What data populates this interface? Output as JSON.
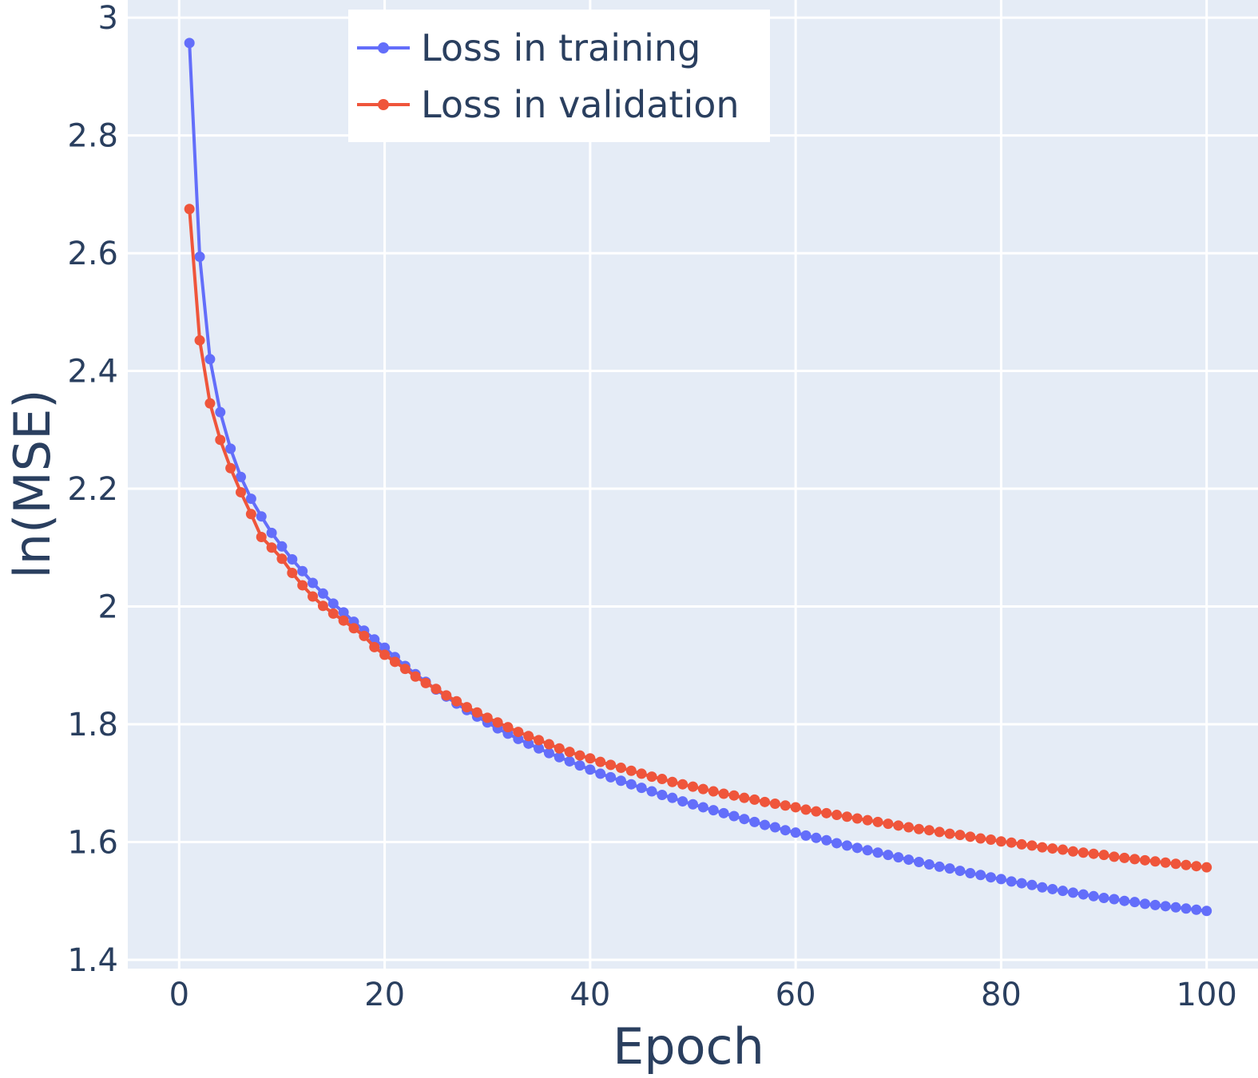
{
  "chart_data": {
    "type": "line",
    "title": "",
    "xlabel": "Epoch",
    "ylabel": "ln(MSE)",
    "xlim": [
      -5,
      105
    ],
    "ylim": [
      1.385,
      3.03
    ],
    "x_ticks": [
      0,
      20,
      40,
      60,
      80,
      100
    ],
    "x_tick_labels": [
      "0",
      "20",
      "40",
      "60",
      "80",
      "100"
    ],
    "y_ticks": [
      1.4,
      1.6,
      1.8,
      2.0,
      2.2,
      2.4,
      2.6,
      2.8,
      3.0
    ],
    "y_tick_labels": [
      "1.4",
      "1.6",
      "1.8",
      "2",
      "2.2",
      "2.4",
      "2.6",
      "2.8",
      "3"
    ],
    "grid": true,
    "legend_position": "top-left",
    "background_color": "#e5ecf6",
    "grid_color": "#ffffff",
    "text_color": "#2a3f5f",
    "x": [
      1,
      2,
      3,
      4,
      5,
      6,
      7,
      8,
      9,
      10,
      11,
      12,
      13,
      14,
      15,
      16,
      17,
      18,
      19,
      20,
      21,
      22,
      23,
      24,
      25,
      26,
      27,
      28,
      29,
      30,
      31,
      32,
      33,
      34,
      35,
      36,
      37,
      38,
      39,
      40,
      41,
      42,
      43,
      44,
      45,
      46,
      47,
      48,
      49,
      50,
      51,
      52,
      53,
      54,
      55,
      56,
      57,
      58,
      59,
      60,
      61,
      62,
      63,
      64,
      65,
      66,
      67,
      68,
      69,
      70,
      71,
      72,
      73,
      74,
      75,
      76,
      77,
      78,
      79,
      80,
      81,
      82,
      83,
      84,
      85,
      86,
      87,
      88,
      89,
      90,
      91,
      92,
      93,
      94,
      95,
      96,
      97,
      98,
      99,
      100
    ],
    "series": [
      {
        "name": "Loss in training",
        "color": "#636efa",
        "values": [
          2.957,
          2.594,
          2.42,
          2.33,
          2.268,
          2.22,
          2.183,
          2.153,
          2.125,
          2.102,
          2.08,
          2.06,
          2.04,
          2.022,
          2.005,
          1.99,
          1.974,
          1.959,
          1.944,
          1.93,
          1.914,
          1.899,
          1.885,
          1.872,
          1.859,
          1.847,
          1.835,
          1.824,
          1.813,
          1.803,
          1.793,
          1.784,
          1.775,
          1.767,
          1.759,
          1.751,
          1.744,
          1.737,
          1.73,
          1.723,
          1.716,
          1.71,
          1.704,
          1.698,
          1.692,
          1.686,
          1.68,
          1.675,
          1.669,
          1.664,
          1.659,
          1.654,
          1.649,
          1.644,
          1.639,
          1.634,
          1.629,
          1.625,
          1.62,
          1.616,
          1.611,
          1.607,
          1.603,
          1.598,
          1.594,
          1.59,
          1.586,
          1.582,
          1.578,
          1.574,
          1.57,
          1.566,
          1.562,
          1.558,
          1.555,
          1.551,
          1.547,
          1.544,
          1.54,
          1.537,
          1.533,
          1.53,
          1.527,
          1.523,
          1.52,
          1.517,
          1.514,
          1.511,
          1.508,
          1.505,
          1.503,
          1.5,
          1.498,
          1.495,
          1.493,
          1.491,
          1.489,
          1.487,
          1.485,
          1.483
        ]
      },
      {
        "name": "Loss in validation",
        "color": "#ef553b",
        "values": [
          2.675,
          2.452,
          2.345,
          2.283,
          2.235,
          2.194,
          2.157,
          2.118,
          2.1,
          2.081,
          2.057,
          2.036,
          2.017,
          2.001,
          1.988,
          1.976,
          1.963,
          1.95,
          1.931,
          1.918,
          1.906,
          1.894,
          1.881,
          1.87,
          1.86,
          1.849,
          1.839,
          1.829,
          1.82,
          1.811,
          1.803,
          1.795,
          1.787,
          1.78,
          1.773,
          1.766,
          1.759,
          1.753,
          1.747,
          1.742,
          1.736,
          1.731,
          1.726,
          1.721,
          1.716,
          1.711,
          1.707,
          1.702,
          1.698,
          1.694,
          1.69,
          1.686,
          1.682,
          1.679,
          1.675,
          1.672,
          1.668,
          1.665,
          1.662,
          1.659,
          1.655,
          1.652,
          1.649,
          1.646,
          1.643,
          1.64,
          1.637,
          1.634,
          1.631,
          1.628,
          1.625,
          1.622,
          1.62,
          1.617,
          1.614,
          1.612,
          1.609,
          1.606,
          1.604,
          1.601,
          1.599,
          1.596,
          1.594,
          1.591,
          1.589,
          1.587,
          1.584,
          1.582,
          1.58,
          1.578,
          1.575,
          1.573,
          1.571,
          1.569,
          1.567,
          1.565,
          1.563,
          1.561,
          1.559,
          1.557
        ]
      }
    ]
  }
}
